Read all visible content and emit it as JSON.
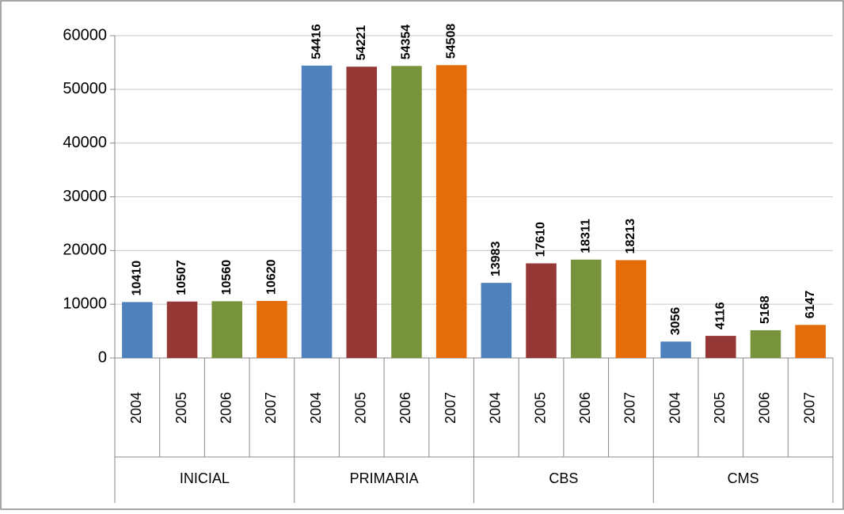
{
  "chart_data": {
    "type": "bar",
    "categories": [
      "INICIAL",
      "PRIMARIA",
      "CBS",
      "CMS"
    ],
    "series": [
      {
        "name": "2004",
        "color": "#4f81bd",
        "values": [
          10410,
          54416,
          13983,
          3056
        ]
      },
      {
        "name": "2005",
        "color": "#953735",
        "values": [
          10507,
          54221,
          17610,
          4116
        ]
      },
      {
        "name": "2006",
        "color": "#77933c",
        "values": [
          10560,
          54354,
          18311,
          5168
        ]
      },
      {
        "name": "2007",
        "color": "#e46c0a",
        "values": [
          10620,
          54508,
          18213,
          6147
        ]
      }
    ],
    "ylim": [
      0,
      60000
    ],
    "yticks": [
      0,
      10000,
      20000,
      30000,
      40000,
      50000,
      60000
    ],
    "grid": true
  }
}
